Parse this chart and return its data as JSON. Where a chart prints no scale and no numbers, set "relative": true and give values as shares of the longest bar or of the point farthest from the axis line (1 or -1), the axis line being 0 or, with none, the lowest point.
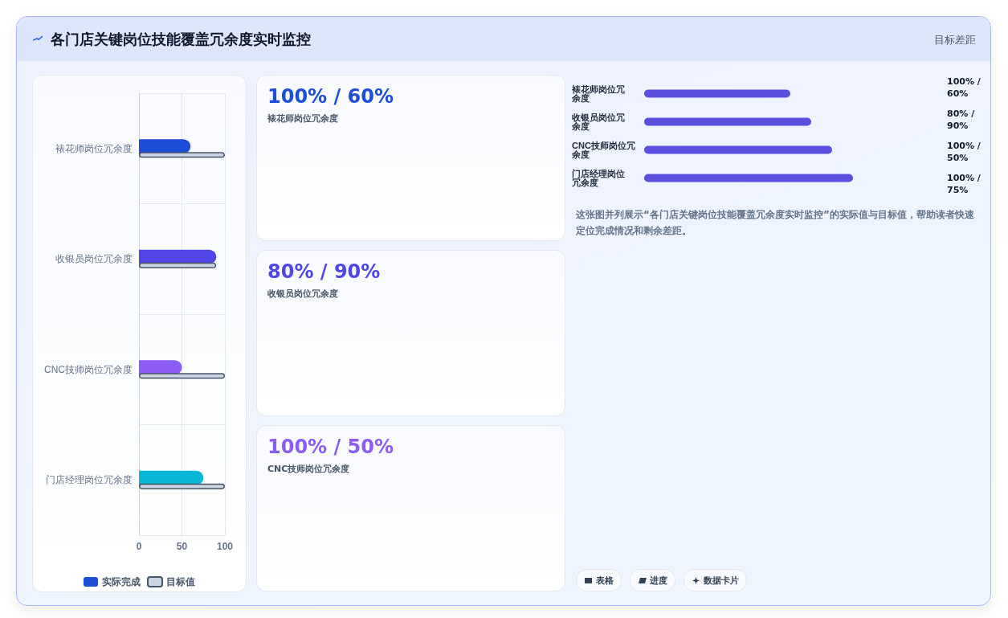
{
  "chart_data": [
    {
      "type": "bar",
      "title": "各门店关键岗位技能覆盖冗余度实时监控",
      "orientation": "horizontal",
      "categories": [
        "裱花师岗位冗余度",
        "收银员岗位冗余度",
        "CNC技师岗位冗余度",
        "门店经理岗位冗余度"
      ],
      "series": [
        {
          "name": "实际完成",
          "color": "#1d4ed8",
          "colors": [
            "#1d4ed8",
            "#4f46e5",
            "#8b5cf6",
            "#06b6d4"
          ],
          "values": [
            60,
            90,
            50,
            75
          ]
        },
        {
          "name": "目标值",
          "color": "#cbd5e1",
          "values": [
            100,
            90,
            100,
            100
          ]
        }
      ],
      "xlim": [
        0,
        100
      ],
      "xticks": [
        0,
        50,
        100
      ],
      "grid": true,
      "legend": "bottom",
      "annotations": [
        "目标差距",
        "表格",
        "进度",
        "数据卡片"
      ]
    },
    {
      "type": "bar",
      "orientation": "horizontal",
      "relative": true,
      "categories": [
        "裱花师岗位冗余度",
        "收银员岗位冗余度",
        "CNC技师岗位冗余度",
        "门店经理岗位冗余度"
      ],
      "series": [
        {
          "color": "#5b4fe0",
          "values": [
            0.7,
            0.8,
            0.9,
            1
          ]
        }
      ],
      "annotations": [
        "100% / 60%",
        "80% / 90%",
        "100% / 50%",
        "100% / 75%",
        "这张图并列展示“各门店关键岗位技能覆盖冗余度实时监控”的实际值与目标值，帮助读者快速定位完成情况和剩余差距。"
      ]
    },
    {
      "type": "other",
      "annotations": [
        "100% / 60%",
        "裱花师岗位冗余度",
        "80% / 90%",
        "收银员岗位冗余度",
        "100% / 50%",
        "CNC技师岗位冗余度"
      ]
    }
  ]
}
